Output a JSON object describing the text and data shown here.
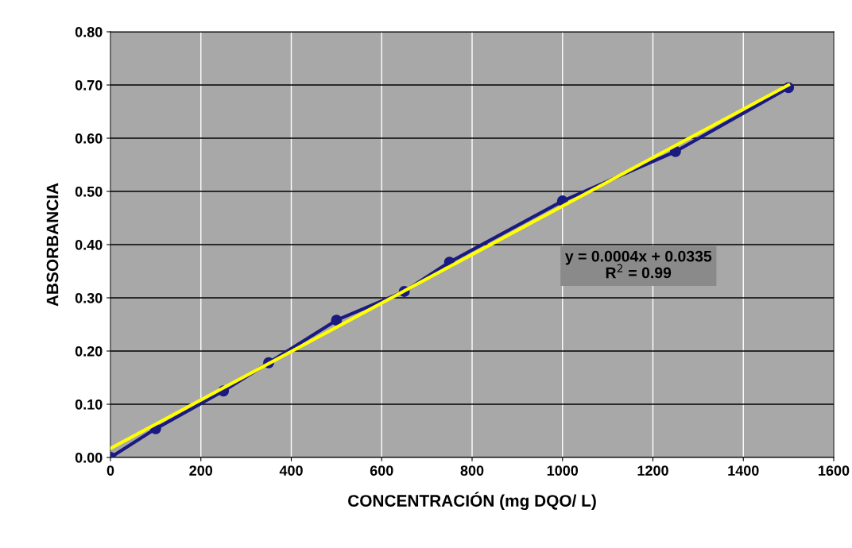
{
  "chart_data": {
    "type": "line",
    "xlabel": "CONCENTRACIÓN (mg DQO/ L)",
    "ylabel": "ABSORBANCIA",
    "x": [
      0,
      100,
      250,
      350,
      500,
      650,
      750,
      1000,
      1250,
      1500
    ],
    "series": [
      {
        "color": "#1a1a80",
        "marker": "circle",
        "values": [
          0.0,
          0.054,
          0.125,
          0.178,
          0.258,
          0.312,
          0.367,
          0.482,
          0.575,
          0.695
        ]
      },
      {
        "color": "#ffff00",
        "marker": "none",
        "x": [
          0,
          1500
        ],
        "values": [
          0.017,
          0.7
        ]
      }
    ],
    "xlim": [
      0,
      1600
    ],
    "xticks": [
      0,
      200,
      400,
      600,
      800,
      1000,
      1200,
      1400,
      1600
    ],
    "ylim": [
      0,
      0.8
    ],
    "yticks": [
      {
        "value": 0,
        "label": "0.00"
      },
      {
        "value": 0.1,
        "label": "0.10"
      },
      {
        "value": 0.2,
        "label": "0.20"
      },
      {
        "value": 0.3,
        "label": "0.30"
      },
      {
        "value": 0.4,
        "label": "0.40"
      },
      {
        "value": 0.5,
        "label": "0.50"
      },
      {
        "value": 0.6,
        "label": "0.60"
      },
      {
        "value": 0.7,
        "label": "0.70"
      },
      {
        "value": 0.8,
        "label": "0.80"
      }
    ],
    "grid": true,
    "line_style": "solid",
    "annotations": [
      "y = 0.0004x + 0.0335\nR$^{2}$ = 0.99"
    ]
  }
}
